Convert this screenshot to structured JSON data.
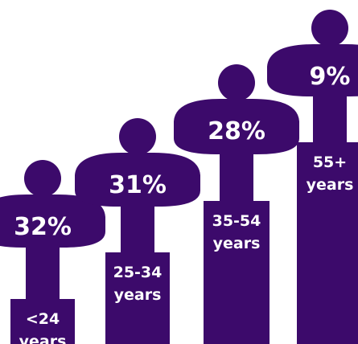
{
  "chart_data": {
    "type": "bar",
    "title": "",
    "xlabel": "",
    "ylabel": "",
    "categories": [
      {
        "line1": "<24",
        "line2": "years"
      },
      {
        "line1": "25-34",
        "line2": "years"
      },
      {
        "line1": "35-54",
        "line2": "years"
      },
      {
        "line1": "55+",
        "line2": "years"
      }
    ],
    "values": [
      32,
      31,
      28,
      9
    ],
    "value_labels": [
      "32%",
      "31%",
      "28%",
      "9%"
    ],
    "unit": "%"
  },
  "colors": {
    "figure": "#3c0a6b",
    "text": "#ffffff",
    "background": "#ffffff"
  }
}
